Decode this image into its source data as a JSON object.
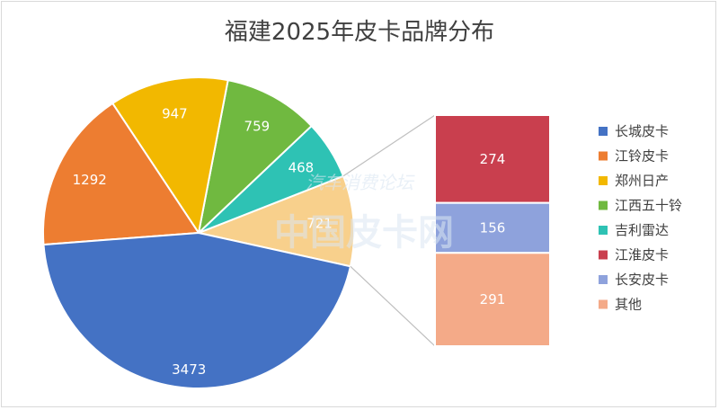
{
  "chart_data": {
    "type": "pie",
    "title": "福建2025年皮卡品牌分布",
    "subtype": "pie-of-pie (bar of pie)",
    "series": [
      {
        "name": "长城皮卡",
        "value": 3473,
        "color": "#4472C4",
        "group": "main"
      },
      {
        "name": "江铃皮卡",
        "value": 1292,
        "color": "#ED7D31",
        "group": "main"
      },
      {
        "name": "郑州日产",
        "value": 947,
        "color": "#F2B800",
        "group": "main"
      },
      {
        "name": "江西五十铃",
        "value": 759,
        "color": "#70B940",
        "group": "main"
      },
      {
        "name": "吉利雷达",
        "value": 468,
        "color": "#2EC2B4",
        "group": "main"
      },
      {
        "name": "江淮皮卡",
        "value": 274,
        "color": "#C93F4E",
        "group": "secondary"
      },
      {
        "name": "长安皮卡",
        "value": 156,
        "color": "#8EA2DC",
        "group": "secondary"
      },
      {
        "name": "其他",
        "value": 291,
        "color": "#F4AA88",
        "group": "secondary"
      }
    ],
    "combined": {
      "value": 721,
      "color": "#F8D08C"
    },
    "legend_position": "right"
  },
  "watermark": {
    "main": "中国皮卡网",
    "sub": "汽车消费论坛"
  }
}
